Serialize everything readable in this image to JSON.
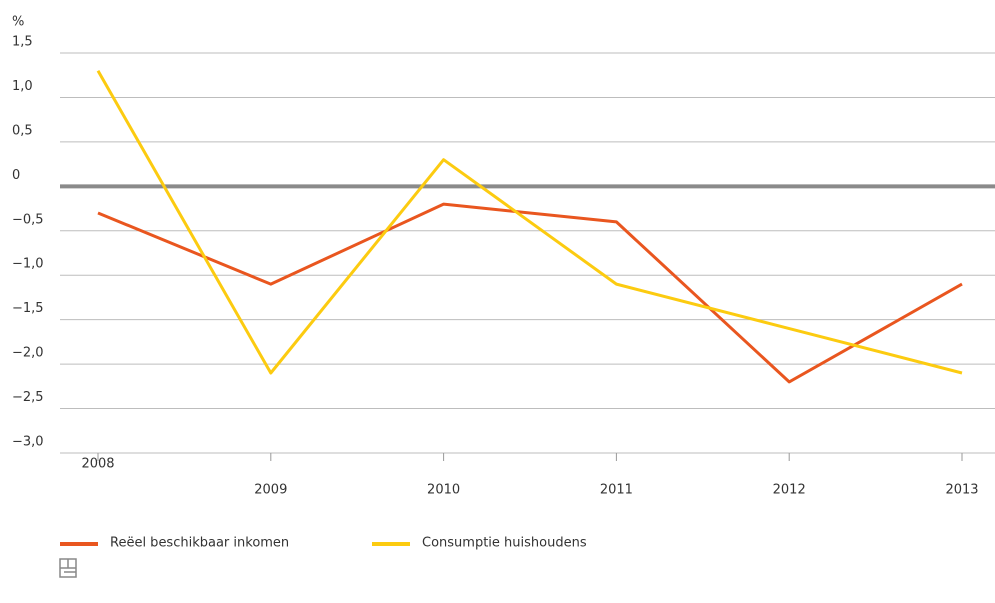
{
  "chart_data": {
    "type": "line",
    "unit_label": "%",
    "categories": [
      "2008",
      "2009",
      "2010",
      "2011",
      "2012",
      "2013"
    ],
    "series": [
      {
        "name": "Reëel beschikbaar inkomen",
        "color": "#e9561f",
        "values": [
          -0.3,
          -1.1,
          -0.2,
          -0.4,
          -2.2,
          -1.1
        ]
      },
      {
        "name": "Consumptie huishoudens",
        "color": "#fccb10",
        "values": [
          1.3,
          -2.1,
          0.3,
          -1.1,
          -1.6,
          -2.1
        ]
      }
    ],
    "ylim": [
      -3.0,
      1.5
    ],
    "yticks": [
      {
        "value": -3.0,
        "label": "−3,0"
      },
      {
        "value": -2.5,
        "label": "−2,5"
      },
      {
        "value": -2.0,
        "label": "−2,0"
      },
      {
        "value": -1.5,
        "label": "−1,5"
      },
      {
        "value": -1.0,
        "label": "−1,0"
      },
      {
        "value": -0.5,
        "label": "−0,5"
      },
      0,
      {
        "value": 0.5,
        "label": "0,5"
      },
      {
        "value": 1.0,
        "label": "1,0"
      },
      {
        "value": 1.5,
        "label": "1,5"
      }
    ],
    "grid": true
  }
}
